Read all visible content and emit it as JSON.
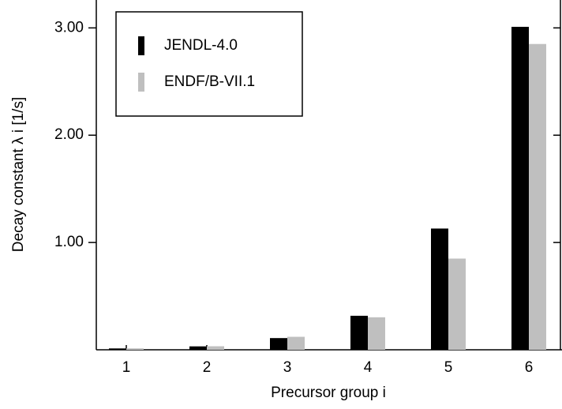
{
  "chart_data": {
    "type": "bar",
    "xlabel": "Precursor group  i",
    "ylabel": "Decay constant λ i  [1/s]",
    "categories": [
      "1",
      "2",
      "3",
      "4",
      "5",
      "6"
    ],
    "series": [
      {
        "name": "JENDL-4.0",
        "color": "#000000",
        "values": [
          0.0125,
          0.0318,
          0.109,
          0.317,
          1.13,
          3.01
        ]
      },
      {
        "name": "ENDF/B-VII.1",
        "color": "#bfbfbf",
        "values": [
          0.0133,
          0.0327,
          0.121,
          0.303,
          0.85,
          2.85
        ]
      }
    ],
    "ylim": [
      0,
      3.26
    ],
    "yticks": [
      {
        "value": 1,
        "label": "1.00"
      },
      {
        "value": 2,
        "label": "2.00"
      },
      {
        "value": 3,
        "label": "3.00"
      }
    ],
    "legend": "upper left"
  }
}
